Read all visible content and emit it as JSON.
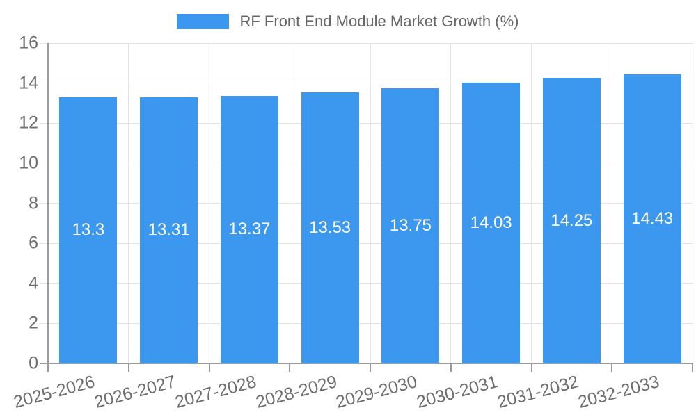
{
  "chart_data": {
    "type": "bar",
    "title": "RF Front End Module Market Growth (%)",
    "legend_position": "top",
    "categories": [
      "2025-2026",
      "2026-2027",
      "2027-2028",
      "2028-2029",
      "2029-2030",
      "2030-2031",
      "2031-2032",
      "2032-2033"
    ],
    "values": [
      13.3,
      13.31,
      13.37,
      13.53,
      13.75,
      14.03,
      14.25,
      14.43
    ],
    "value_labels": [
      "13.3",
      "13.31",
      "13.37",
      "13.53",
      "13.75",
      "14.03",
      "14.25",
      "14.43"
    ],
    "xlabel": "",
    "ylabel": "",
    "ylim": [
      0,
      16
    ],
    "yticks": [
      0,
      2,
      4,
      6,
      8,
      10,
      12,
      14,
      16
    ],
    "grid": true,
    "bar_color": "#3b98ee",
    "value_label_color": "#ffffff",
    "axis_color": "#9b9b9b",
    "grid_color": "#e3e3e3",
    "tick_label_color": "#6e6e6e",
    "legend_text_color": "#666666",
    "background_color": "#ffffff"
  }
}
